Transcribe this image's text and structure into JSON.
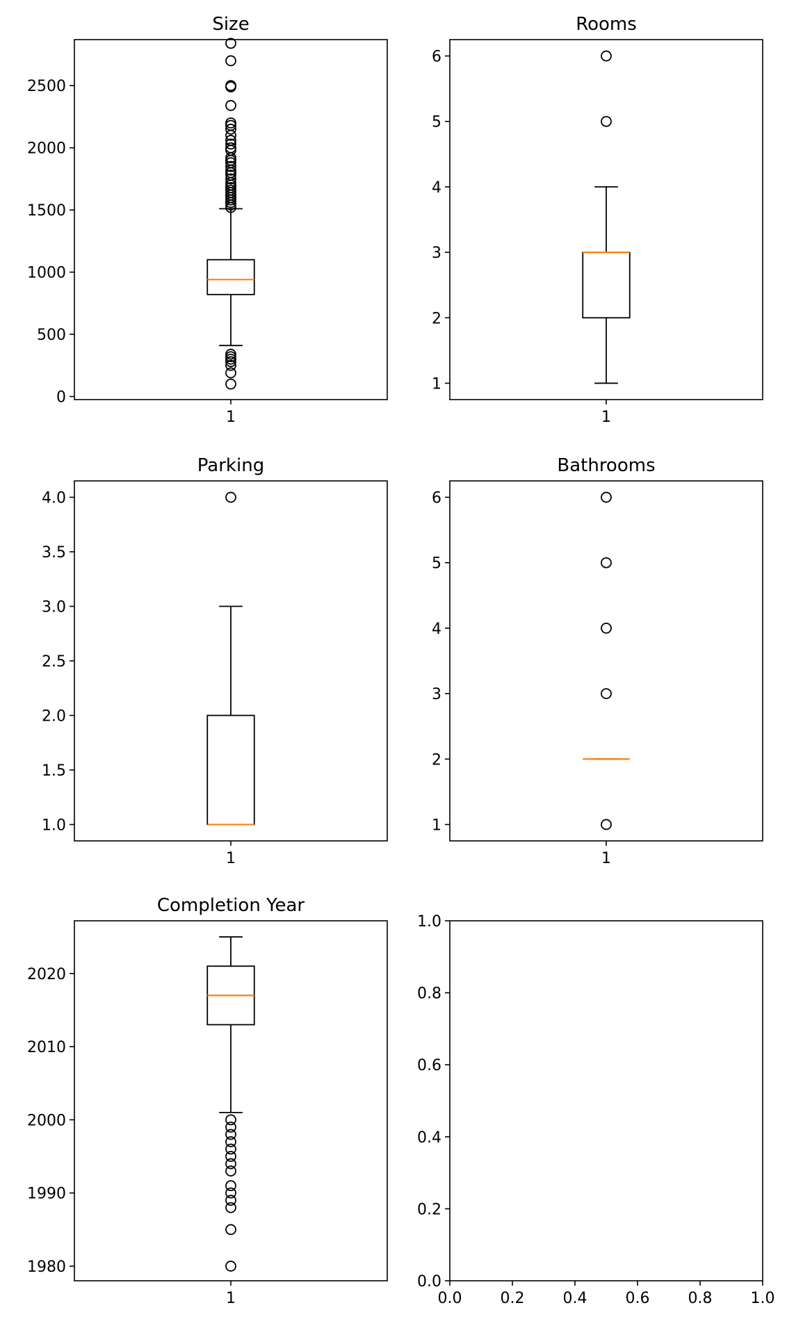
{
  "chart_data": [
    {
      "type": "boxplot",
      "title": "Size",
      "xlabel": "",
      "ylabel": "",
      "categories": [
        "1"
      ],
      "ylim": [
        -25,
        2870
      ],
      "yticks": [
        0,
        500,
        1000,
        1500,
        2000,
        2500
      ],
      "box": {
        "whislo": 410,
        "q1": 820,
        "med": 940,
        "q3": 1100,
        "whishi": 1510
      },
      "fliers": [
        100,
        190,
        250,
        280,
        300,
        320,
        340,
        1520,
        1540,
        1560,
        1580,
        1600,
        1620,
        1640,
        1660,
        1680,
        1700,
        1720,
        1750,
        1780,
        1800,
        1820,
        1850,
        1880,
        1900,
        1920,
        1980,
        2000,
        2030,
        2060,
        2100,
        2150,
        2180,
        2200,
        2340,
        2490,
        2500,
        2700,
        2840
      ],
      "colors": {
        "box": "#000000",
        "median": "#ff7f0e"
      }
    },
    {
      "type": "boxplot",
      "title": "Rooms",
      "xlabel": "",
      "ylabel": "",
      "categories": [
        "1"
      ],
      "ylim": [
        0.75,
        6.25
      ],
      "yticks": [
        1,
        2,
        3,
        4,
        5,
        6
      ],
      "box": {
        "whislo": 1,
        "q1": 2,
        "med": 3,
        "q3": 3,
        "whishi": 4
      },
      "fliers": [
        5,
        6
      ],
      "colors": {
        "box": "#000000",
        "median": "#ff7f0e"
      }
    },
    {
      "type": "boxplot",
      "title": "Parking",
      "xlabel": "",
      "ylabel": "",
      "categories": [
        "1"
      ],
      "ylim": [
        0.85,
        4.15
      ],
      "yticks": [
        1.0,
        1.5,
        2.0,
        2.5,
        3.0,
        3.5,
        4.0
      ],
      "ytick_labels": [
        "1.0",
        "1.5",
        "2.0",
        "2.5",
        "3.0",
        "3.5",
        "4.0"
      ],
      "box": {
        "whislo": 1,
        "q1": 1,
        "med": 1,
        "q3": 2,
        "whishi": 3
      },
      "fliers": [
        4
      ],
      "colors": {
        "box": "#000000",
        "median": "#ff7f0e"
      }
    },
    {
      "type": "boxplot",
      "title": "Bathrooms",
      "xlabel": "",
      "ylabel": "",
      "categories": [
        "1"
      ],
      "ylim": [
        0.75,
        6.25
      ],
      "yticks": [
        1,
        2,
        3,
        4,
        5,
        6
      ],
      "box": {
        "whislo": 2,
        "q1": 2,
        "med": 2,
        "q3": 2,
        "whishi": 2
      },
      "fliers": [
        1,
        3,
        4,
        5,
        6
      ],
      "colors": {
        "box": "#000000",
        "median": "#ff7f0e"
      }
    },
    {
      "type": "boxplot",
      "title": "Completion Year",
      "xlabel": "",
      "ylabel": "",
      "categories": [
        "1"
      ],
      "ylim": [
        1978,
        2027.2
      ],
      "yticks": [
        1980,
        1990,
        2000,
        2010,
        2020
      ],
      "box": {
        "whislo": 2001,
        "q1": 2013,
        "med": 2017,
        "q3": 2021,
        "whishi": 2025
      },
      "fliers": [
        1980,
        1985,
        1988,
        1989,
        1990,
        1991,
        1993,
        1994,
        1995,
        1996,
        1997,
        1998,
        1999,
        2000
      ],
      "colors": {
        "box": "#000000",
        "median": "#ff7f0e"
      }
    },
    {
      "type": "empty",
      "title": "",
      "xlim": [
        0,
        1
      ],
      "ylim": [
        0,
        1
      ],
      "xticks": [
        0,
        0.2,
        0.4,
        0.6,
        0.8,
        1.0
      ],
      "xtick_labels": [
        "0.0",
        "0.2",
        "0.4",
        "0.6",
        "0.8",
        "1.0"
      ],
      "yticks": [
        0,
        0.2,
        0.4,
        0.6,
        0.8,
        1.0
      ],
      "ytick_labels": [
        "0.0",
        "0.2",
        "0.4",
        "0.6",
        "0.8",
        "1.0"
      ]
    }
  ]
}
